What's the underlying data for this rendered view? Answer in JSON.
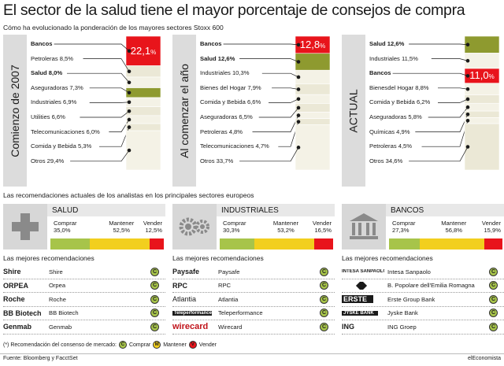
{
  "title": "El sector de la salud tiene el mayor porcentaje de consejos de compra",
  "subtitle": "Cómo ha evolucionado la ponderación de los mayores sectores Stoxx 600",
  "chart_data": [
    {
      "type": "bar",
      "panel_label": "Comienzo de 2007",
      "segments": [
        {
          "label": "Bancos",
          "value": 22.1,
          "bold": true,
          "color": "#e8141b",
          "big_label": "22,1"
        },
        {
          "label": "Petroleras 8,5%",
          "value": 8.5,
          "bold": false,
          "color": "#ebe8d6"
        },
        {
          "label": "Salud 8,0%",
          "value": 8.0,
          "bold": true,
          "color": "#f4f2e6"
        },
        {
          "label": "Aseguradoras 7,3%",
          "value": 7.3,
          "bold": false,
          "color": "#8e9a2f"
        },
        {
          "label": "Industriales 6,9%",
          "value": 6.9,
          "bold": false,
          "color": "#f4f2e6"
        },
        {
          "label": "Utilities 6,6%",
          "value": 6.6,
          "bold": false,
          "color": "#ebe8d6"
        },
        {
          "label": "Telecomunicaciones 6,0%",
          "value": 6.0,
          "bold": false,
          "color": "#f4f2e6"
        },
        {
          "label": "Comida y Bebida 5,3%",
          "value": 5.3,
          "bold": false,
          "color": "#ebe8d6"
        },
        {
          "label": "Otros 29,4%",
          "value": 29.4,
          "bold": false,
          "color": "#f4f2e6"
        }
      ]
    },
    {
      "type": "bar",
      "panel_label": "Al comenzar el año",
      "segments": [
        {
          "label": "Bancos",
          "value": 12.8,
          "bold": true,
          "color": "#e8141b",
          "big_label": "12,8"
        },
        {
          "label": "Salud 12,6%",
          "value": 12.6,
          "bold": true,
          "color": "#8e9a2f"
        },
        {
          "label": "Industriales 10,3%",
          "value": 10.3,
          "bold": false,
          "color": "#f4f2e6"
        },
        {
          "label": "Bienes del Hogar 7,9%",
          "value": 7.9,
          "bold": false,
          "color": "#ebe8d6"
        },
        {
          "label": "Comida y Bebida 6,6%",
          "value": 6.6,
          "bold": false,
          "color": "#f4f2e6"
        },
        {
          "label": "Aseguradoras 6,5%",
          "value": 6.5,
          "bold": false,
          "color": "#ebe8d6"
        },
        {
          "label": "Petroleras 4,8%",
          "value": 4.8,
          "bold": false,
          "color": "#f4f2e6"
        },
        {
          "label": "Telecomunicaciones 4,7%",
          "value": 4.7,
          "bold": false,
          "color": "#ebe8d6"
        },
        {
          "label": "Otros 33,7%",
          "value": 33.7,
          "bold": false,
          "color": "#f4f2e6"
        }
      ]
    },
    {
      "type": "bar",
      "panel_label": "ACTUAL",
      "segments": [
        {
          "label": "Salud 12,6%",
          "value": 12.6,
          "bold": true,
          "color": "#8e9a2f"
        },
        {
          "label": "Industriales 11,5%",
          "value": 11.5,
          "bold": false,
          "color": "#f4f2e6"
        },
        {
          "label": "Bancos",
          "value": 11.0,
          "bold": true,
          "color": "#e8141b",
          "big_label": "11,0"
        },
        {
          "label": "Bienesdel Hogar 8,8%",
          "value": 8.8,
          "bold": false,
          "color": "#f4f2e6"
        },
        {
          "label": "Comida y Bebida 6,2%",
          "value": 6.2,
          "bold": false,
          "color": "#ebe8d6"
        },
        {
          "label": "Aseguradoras 5,8%",
          "value": 5.8,
          "bold": false,
          "color": "#f4f2e6"
        },
        {
          "label": "Químicas 4,9%",
          "value": 4.9,
          "bold": false,
          "color": "#ebe8d6"
        },
        {
          "label": "Petroleras 4,5%",
          "value": 4.5,
          "bold": false,
          "color": "#f4f2e6"
        },
        {
          "label": "Otros 34,6%",
          "value": 34.6,
          "bold": false,
          "color": "#ebe8d6"
        }
      ]
    },
    {
      "type": "bar",
      "title": "SALUD",
      "categories": [
        "Comprar",
        "Mantener",
        "Vender"
      ],
      "values": [
        35.0,
        52.5,
        12.5
      ],
      "value_labels": [
        "35,0%",
        "52,5%",
        "12,5%"
      ],
      "colors": [
        "#a7c44a",
        "#f2cf1e",
        "#e8141b"
      ]
    },
    {
      "type": "bar",
      "title": "INDUSTRIALES",
      "categories": [
        "Comprar",
        "Mantener",
        "Vender"
      ],
      "values": [
        30.3,
        53.2,
        16.5
      ],
      "value_labels": [
        "30,3%",
        "53,2%",
        "16,5%"
      ],
      "colors": [
        "#a7c44a",
        "#f2cf1e",
        "#e8141b"
      ]
    },
    {
      "type": "bar",
      "title": "BANCOS",
      "categories": [
        "Comprar",
        "Mantener",
        "Vender"
      ],
      "values": [
        27.3,
        56.8,
        15.9
      ],
      "value_labels": [
        "27,3%",
        "56,8%",
        "15,9%"
      ],
      "colors": [
        "#a7c44a",
        "#f2cf1e",
        "#e8141b"
      ]
    }
  ],
  "pct_suffix": "%",
  "section_title": "Las recomendaciones actuales de los analistas en los principales sectores europeos",
  "best_title": "Las mejores recomendaciones",
  "best": [
    {
      "items": [
        {
          "logo": "Shire",
          "name": "Shire"
        },
        {
          "logo": "ORPEA",
          "name": "Orpea"
        },
        {
          "logo": "Roche",
          "name": "Roche"
        },
        {
          "logo": "BB Biotech",
          "name": "BB Biotech"
        },
        {
          "logo": "Genmab",
          "name": "Genmab"
        }
      ]
    },
    {
      "items": [
        {
          "logo": "Paysafe",
          "name": "Paysafe"
        },
        {
          "logo": "RPC",
          "name": "RPC"
        },
        {
          "logo": "Atlantia",
          "name": "Atlantia"
        },
        {
          "logo": "Teleperformance",
          "name": "Teleperformance"
        },
        {
          "logo": "wirecard",
          "name": "Wirecard"
        }
      ]
    },
    {
      "items": [
        {
          "logo": "INTESA SANPAOLO",
          "name": "Intesa Sanpaolo"
        },
        {
          "logo": "",
          "name": "B. Popolare dell'Emilia Romagna"
        },
        {
          "logo": "ERSTE",
          "name": "Erste Group Bank"
        },
        {
          "logo": "JYSKE BANK",
          "name": "Jyske Bank"
        },
        {
          "logo": "ING",
          "name": "ING Groep"
        }
      ]
    }
  ],
  "rec_letters": {
    "buy": "C",
    "hold": "M",
    "sell": "V"
  },
  "legend": {
    "intro": "(*) Recomendación del consenso de mercado:",
    "buy": "Comprar",
    "hold": "Mantener",
    "sell": "Vender"
  },
  "footer": {
    "source": "Fuente: Bloomberg y FacctSet",
    "brand": "elEconomista"
  },
  "colors": {
    "buy": "#a7c44a",
    "hold": "#f2cf1e",
    "sell": "#e8141b",
    "olive": "#8e9a2f"
  }
}
